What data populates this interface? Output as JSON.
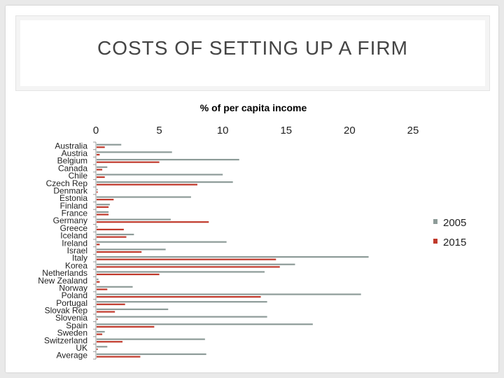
{
  "slide": {
    "title": "COSTS OF SETTING UP A FIRM"
  },
  "chart_data": {
    "type": "bar",
    "orientation": "horizontal",
    "title": "% of per capita income",
    "xlabel": "",
    "ylabel": "",
    "xlim": [
      0,
      25
    ],
    "xticks": [
      0,
      5,
      10,
      15,
      20,
      25
    ],
    "xtick_labels": [
      "0",
      "5",
      "10",
      "15",
      "20",
      "25"
    ],
    "legend_position": "right",
    "categories": [
      "Australia",
      "Austria",
      "Belgium",
      "Canada",
      "Chile",
      "Czech Rep",
      "Denmark",
      "Estonia",
      "Finland",
      "France",
      "Germany",
      "Greece",
      "Iceland",
      "Ireland",
      "Israel",
      "Italy",
      "Korea",
      "Netherlands",
      "New Zealand",
      "Norway",
      "Poland",
      "Portugal",
      "Slovak Rep",
      "Slovenia",
      "Spain",
      "Sweden",
      "Switzerland",
      "UK",
      "Average"
    ],
    "series": [
      {
        "name": "2005",
        "color": "#8d9b98",
        "values": [
          2.0,
          6.0,
          11.3,
          0.9,
          10.0,
          10.8,
          0.0,
          7.5,
          1.1,
          1.0,
          5.9,
          0.0,
          3.0,
          10.3,
          5.5,
          21.5,
          15.7,
          13.3,
          0.2,
          2.9,
          20.9,
          13.5,
          5.7,
          13.5,
          17.1,
          0.7,
          8.6,
          0.9,
          8.7
        ]
      },
      {
        "name": "2015",
        "color": "#c0392b",
        "values": [
          0.7,
          0.3,
          5.0,
          0.5,
          0.7,
          8.0,
          0.0,
          1.4,
          1.0,
          1.0,
          8.9,
          2.2,
          2.4,
          0.3,
          3.6,
          14.2,
          14.5,
          5.0,
          0.3,
          0.9,
          13.0,
          2.3,
          1.5,
          0.0,
          4.6,
          0.5,
          2.1,
          0.0,
          3.5
        ]
      }
    ]
  }
}
